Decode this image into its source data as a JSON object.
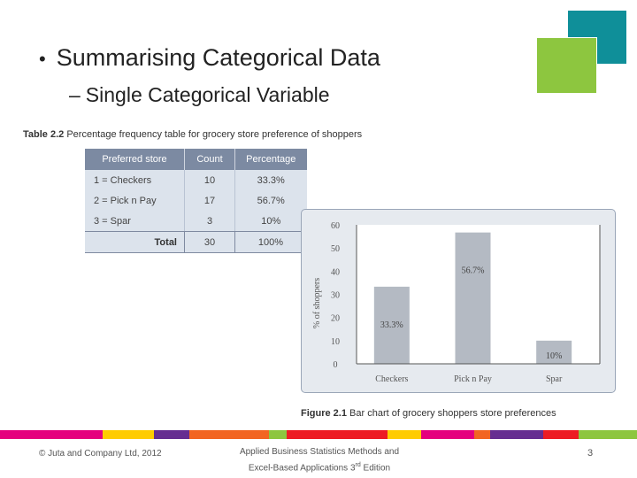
{
  "colors": {
    "teal": "#0f8f99",
    "green": "#8dc63f",
    "table_header": "#7c8aa2",
    "table_row": "#dce3ec",
    "bar": "#b4bac3",
    "chart_bg": "#e6eaef",
    "footer_band": [
      "#e5007e",
      "#e5007e",
      "#ffcc00",
      "#662d91",
      "#f26522",
      "#f26522",
      "#8dc63f",
      "#ed1c24",
      "#ed1c24",
      "#ffcc00",
      "#e5007e",
      "#f26522",
      "#662d91",
      "#ed1c24",
      "#8dc63f"
    ]
  },
  "slide": {
    "title": "Summarising Categorical Data",
    "bullet_symbol": "•",
    "subtitle": "Single Categorical Variable",
    "subtitle_dash": "–"
  },
  "table": {
    "caption_label": "Table 2.2",
    "caption_text": "Percentage frequency table for grocery store preference of shoppers",
    "headers": [
      "Preferred store",
      "Count",
      "Percentage"
    ],
    "rows": [
      {
        "store": "1 = Checkers",
        "count": "10",
        "pct": "33.3%"
      },
      {
        "store": "2 = Pick n Pay",
        "count": "17",
        "pct": "56.7%"
      },
      {
        "store": "3 = Spar",
        "count": "3",
        "pct": "10%"
      }
    ],
    "total": {
      "label": "Total",
      "count": "30",
      "pct": "100%"
    }
  },
  "chart_data": {
    "type": "bar",
    "categories": [
      "Checkers",
      "Pick n Pay",
      "Spar"
    ],
    "values": [
      33.3,
      56.7,
      10
    ],
    "data_labels": [
      "33.3%",
      "56.7%",
      "10%"
    ],
    "ylabel": "% of shoppers",
    "yticks": [
      "0",
      "10",
      "20",
      "30",
      "40",
      "50",
      "60"
    ],
    "ylim": [
      0,
      60
    ],
    "grid": false
  },
  "figure": {
    "caption_label": "Figure 2.1",
    "caption_text": "Bar chart of grocery shoppers store preferences"
  },
  "footer": {
    "copyright": "© Juta and Company Ltd, 2012",
    "book_line1": "Applied Business Statistics Methods and",
    "book_line2_pre": "Excel-Based Applications 3",
    "book_line2_sup": "rd",
    "book_line2_post": " Edition",
    "page_number": "3"
  }
}
